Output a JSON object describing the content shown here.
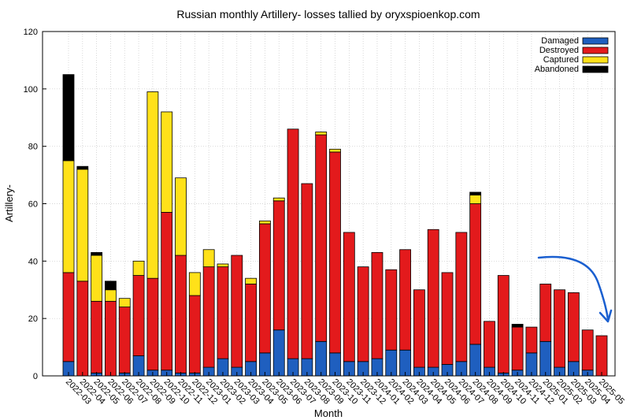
{
  "chart_data": {
    "type": "bar",
    "stacked": true,
    "title": "Russian monthly Artillery- losses tallied by oryxspioenkop.com",
    "xlabel": "Month",
    "ylabel": "Artillery-",
    "ylim": [
      0,
      120
    ],
    "yticks": [
      0,
      20,
      40,
      60,
      80,
      100,
      120
    ],
    "grid": true,
    "legend_position": "top-right",
    "categories": [
      "2022-03",
      "2022-04",
      "2022-05",
      "2022-06",
      "2022-07",
      "2022-08",
      "2022-09",
      "2022-10",
      "2022-11",
      "2022-12",
      "2023-01",
      "2023-02",
      "2023-03",
      "2023-04",
      "2023-05",
      "2023-06",
      "2023-07",
      "2023-08",
      "2023-09",
      "2023-10",
      "2023-11",
      "2023-12",
      "2024-01",
      "2024-02",
      "2024-03",
      "2024-04",
      "2024-05",
      "2024-06",
      "2024-07",
      "2024-08",
      "2024-09",
      "2024-10",
      "2024-11",
      "2024-12",
      "2025-01",
      "2025-02",
      "2025-03",
      "2025-04",
      "2025-05"
    ],
    "series": [
      {
        "name": "Damaged",
        "color": "#1f5fbf",
        "values": [
          5,
          0,
          1,
          0,
          1,
          7,
          2,
          2,
          1,
          1,
          3,
          6,
          3,
          5,
          8,
          16,
          6,
          6,
          12,
          8,
          5,
          5,
          6,
          9,
          9,
          3,
          3,
          4,
          5,
          11,
          3,
          1,
          2,
          8,
          12,
          3,
          5,
          2,
          0
        ]
      },
      {
        "name": "Destroyed",
        "color": "#e31a1c",
        "values": [
          31,
          33,
          25,
          26,
          23,
          28,
          32,
          55,
          41,
          27,
          35,
          32,
          39,
          27,
          45,
          45,
          80,
          61,
          72,
          70,
          45,
          33,
          37,
          28,
          35,
          27,
          48,
          32,
          45,
          49,
          16,
          34,
          15,
          9,
          20,
          27,
          24,
          14,
          14
        ]
      },
      {
        "name": "Captured",
        "color": "#ffe119",
        "values": [
          39,
          39,
          16,
          4,
          3,
          5,
          65,
          35,
          27,
          8,
          6,
          1,
          0,
          2,
          1,
          1,
          0,
          0,
          1,
          1,
          0,
          0,
          0,
          0,
          0,
          0,
          0,
          0,
          0,
          3,
          0,
          0,
          0,
          0,
          0,
          0,
          0,
          0,
          0
        ]
      },
      {
        "name": "Abandoned",
        "color": "#000000",
        "values": [
          30,
          1,
          1,
          3,
          0,
          0,
          0,
          0,
          0,
          0,
          0,
          0,
          0,
          0,
          0,
          0,
          0,
          0,
          0,
          0,
          0,
          0,
          0,
          0,
          0,
          0,
          0,
          0,
          0,
          1,
          0,
          0,
          1,
          0,
          0,
          0,
          0,
          0,
          0
        ]
      }
    ]
  },
  "annotation": {
    "arrow_color": "#1a5fd0"
  }
}
